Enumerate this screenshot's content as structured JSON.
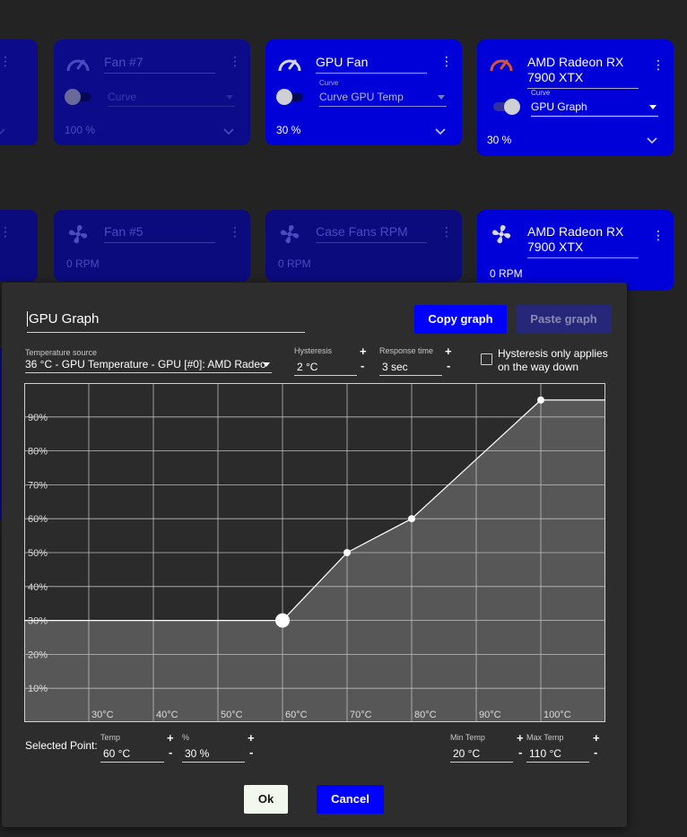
{
  "row1": [
    {
      "title": "",
      "subtitle": "",
      "status": "",
      "dropdown_label": "",
      "dropdown_value": ""
    },
    {
      "title": "Fan #7",
      "dropdown_label": "",
      "dropdown_value": "Curve",
      "status": "100 %"
    },
    {
      "title": "GPU Fan",
      "dropdown_label": "Curve",
      "dropdown_value": "Curve GPU Temp",
      "status": "30 %"
    },
    {
      "title": "AMD Radeon RX 7900 XTX",
      "dropdown_label": "Curve",
      "dropdown_value": "GPU Graph",
      "status": "30 %"
    }
  ],
  "row2": [
    {
      "title": "Fan #5",
      "status": "0 RPM"
    },
    {
      "title": "Case Fans RPM",
      "status": "0 RPM"
    },
    {
      "title": "AMD Radeon RX 7900 XTX",
      "status": "0 RPM"
    }
  ],
  "colors": {
    "accent": "#0000ff",
    "card_bright": "#0000d8",
    "card_dim": "#0c0c8a",
    "gauge_orange": "#d7542c"
  },
  "dialog": {
    "name": "GPU Graph",
    "copy_label": "Copy graph",
    "paste_label": "Paste graph",
    "temp_source_label": "Temperature source",
    "temp_source_value": "36 °C - GPU Temperature - GPU [#0]: AMD Radeo",
    "hysteresis_label": "Hysteresis",
    "hysteresis_value": "2 °C",
    "response_label": "Response time",
    "response_value": "3 sec",
    "hyst_only_down_label": "Hysteresis only applies on the way down",
    "hyst_only_down_checked": false,
    "selected_point_label": "Selected Point:",
    "temp_label": "Temp",
    "temp_value": "60 °C",
    "percent_label": "%",
    "percent_value": "30 %",
    "min_temp_label": "Min Temp",
    "min_temp_value": "20 °C",
    "max_temp_label": "Max Temp",
    "max_temp_value": "110 °C",
    "ok_label": "Ok",
    "cancel_label": "Cancel",
    "plus": "+",
    "minus": "-"
  },
  "chart_data": {
    "type": "line",
    "x_ticks": [
      "30°C",
      "40°C",
      "50°C",
      "60°C",
      "70°C",
      "80°C",
      "90°C",
      "100°C"
    ],
    "y_ticks": [
      "90%",
      "80%",
      "70%",
      "60%",
      "50%",
      "40%",
      "30%",
      "20%",
      "10%"
    ],
    "xlim": [
      20,
      110
    ],
    "ylim": [
      0,
      100
    ],
    "points": [
      {
        "x": 60,
        "y": 30
      },
      {
        "x": 70,
        "y": 50
      },
      {
        "x": 80,
        "y": 60
      },
      {
        "x": 100,
        "y": 95
      }
    ],
    "selected_index": 0,
    "grid": true
  }
}
